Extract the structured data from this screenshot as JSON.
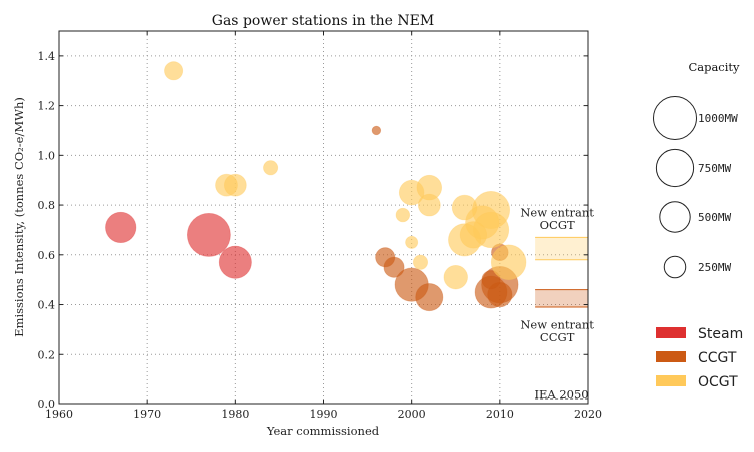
{
  "chart_data": {
    "type": "scatter",
    "title": "Gas power stations in the NEM",
    "xlabel": "Year commissioned",
    "ylabel": "Emissions Intensity, (tonnes CO₂-e/MWh)",
    "xlim": [
      1960,
      2020
    ],
    "ylim": [
      0.0,
      1.5
    ],
    "xticks": [
      "1960",
      "1970",
      "1980",
      "1990",
      "2000",
      "2010",
      "2020"
    ],
    "yticks": [
      "0.0",
      "0.2",
      "0.4",
      "0.6",
      "0.8",
      "1.0",
      "1.2",
      "1.4"
    ],
    "grid": true,
    "colors": {
      "Steam": "#de3030",
      "CCGT": "#cc5a14",
      "OCGT": "#ffc95a"
    },
    "series": [
      {
        "name": "Steam",
        "points": [
          {
            "x": 1967,
            "y": 0.71,
            "size": 500
          },
          {
            "x": 1977,
            "y": 0.68,
            "size": 1000
          },
          {
            "x": 1980,
            "y": 0.57,
            "size": 560
          }
        ]
      },
      {
        "name": "CCGT",
        "points": [
          {
            "x": 1996,
            "y": 1.1,
            "size": 40
          },
          {
            "x": 1997,
            "y": 0.59,
            "size": 200
          },
          {
            "x": 1998,
            "y": 0.55,
            "size": 220
          },
          {
            "x": 2000,
            "y": 0.48,
            "size": 600
          },
          {
            "x": 2002,
            "y": 0.43,
            "size": 400
          },
          {
            "x": 2009,
            "y": 0.5,
            "size": 180
          },
          {
            "x": 2009,
            "y": 0.45,
            "size": 550
          },
          {
            "x": 2010,
            "y": 0.48,
            "size": 720
          },
          {
            "x": 2010,
            "y": 0.44,
            "size": 320
          },
          {
            "x": 2010,
            "y": 0.61,
            "size": 150
          }
        ]
      },
      {
        "name": "OCGT",
        "points": [
          {
            "x": 1973,
            "y": 1.34,
            "size": 180
          },
          {
            "x": 1979,
            "y": 0.88,
            "size": 260
          },
          {
            "x": 1980,
            "y": 0.88,
            "size": 260
          },
          {
            "x": 1984,
            "y": 0.95,
            "size": 110
          },
          {
            "x": 1999,
            "y": 0.76,
            "size": 100
          },
          {
            "x": 2000,
            "y": 0.85,
            "size": 330
          },
          {
            "x": 2000,
            "y": 0.65,
            "size": 80
          },
          {
            "x": 2001,
            "y": 0.57,
            "size": 110
          },
          {
            "x": 2002,
            "y": 0.87,
            "size": 330
          },
          {
            "x": 2002,
            "y": 0.8,
            "size": 260
          },
          {
            "x": 2005,
            "y": 0.51,
            "size": 300
          },
          {
            "x": 2006,
            "y": 0.79,
            "size": 330
          },
          {
            "x": 2006,
            "y": 0.66,
            "size": 560
          },
          {
            "x": 2007,
            "y": 0.68,
            "size": 380
          },
          {
            "x": 2008,
            "y": 0.73,
            "size": 600
          },
          {
            "x": 2009,
            "y": 0.78,
            "size": 750
          },
          {
            "x": 2009,
            "y": 0.7,
            "size": 680
          },
          {
            "x": 2011,
            "y": 0.57,
            "size": 650
          }
        ]
      }
    ],
    "bands": [
      {
        "name": "New entrant OCGT",
        "x_from": 2014,
        "x_to": 2020,
        "y_from": 0.58,
        "y_to": 0.67,
        "color": "#ffc95a"
      },
      {
        "name": "New entrant CCGT",
        "x_from": 2014,
        "x_to": 2020,
        "y_from": 0.39,
        "y_to": 0.46,
        "color": "#cc5a14"
      }
    ],
    "reference_lines": [
      {
        "name": "IEA 2050",
        "y": 0.02,
        "x_from": 2014,
        "x_to": 2020
      }
    ],
    "annotations": [
      {
        "lines": [
          "New entrant",
          "OCGT"
        ],
        "x": 2016.5,
        "y_lines": [
          0.77,
          0.72
        ]
      },
      {
        "lines": [
          "New entrant",
          "CCGT"
        ],
        "x": 2016.5,
        "y_lines": [
          0.32,
          0.27
        ]
      },
      {
        "lines": [
          "IEA 2050"
        ],
        "x": 2017,
        "y_lines": [
          0.04
        ]
      }
    ],
    "legend_capacity": {
      "title": "Capacity",
      "entries": [
        {
          "size": 1000,
          "label": "1000MW"
        },
        {
          "size": 750,
          "label": "750MW"
        },
        {
          "size": 500,
          "label": "500MW"
        },
        {
          "size": 250,
          "label": "250MW"
        }
      ]
    },
    "legend_fuel": [
      "Steam",
      "CCGT",
      "OCGT"
    ]
  }
}
